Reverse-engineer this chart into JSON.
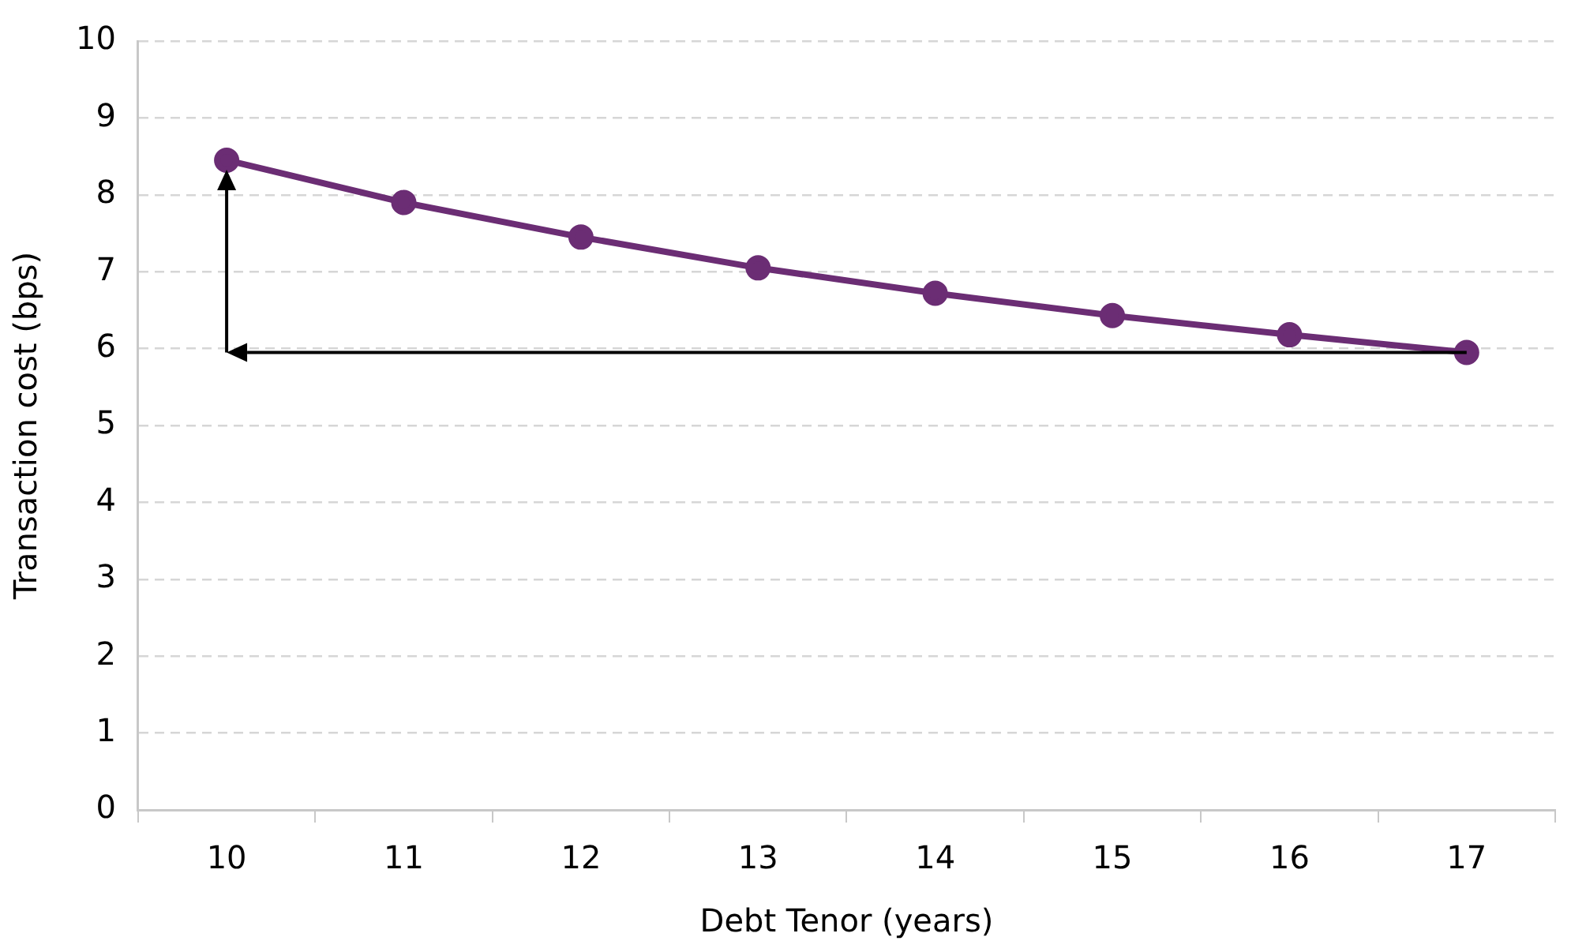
{
  "chart_data": {
    "type": "line",
    "xlabel": "Debt Tenor (years)",
    "ylabel": "Transaction cost (bps)",
    "categories": [
      "10",
      "11",
      "12",
      "13",
      "14",
      "15",
      "16",
      "17"
    ],
    "series": [
      {
        "color": "#6b2d74",
        "values": [
          8.45,
          7.9,
          7.45,
          7.05,
          6.72,
          6.43,
          6.18,
          5.95
        ]
      }
    ],
    "ref_lines": [
      {
        "axis": "y",
        "value": 5.95,
        "color": "#000000"
      }
    ],
    "ylim": [
      0,
      10
    ],
    "yticks": [
      0,
      1,
      2,
      3,
      4,
      5,
      6,
      7,
      8,
      9,
      10
    ],
    "grid": "y",
    "legend": false,
    "marker": "circle",
    "line_style": "solid"
  }
}
